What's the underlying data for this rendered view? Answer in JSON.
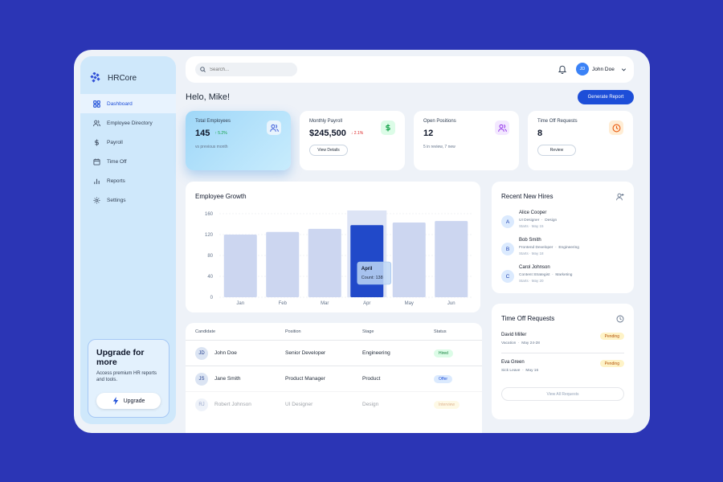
{
  "brand": {
    "name": "HRCore"
  },
  "sidebar": {
    "items": [
      {
        "label": "Dashboard",
        "icon": "grid-icon",
        "active": true
      },
      {
        "label": "Employee Directory",
        "icon": "users-icon"
      },
      {
        "label": "Payroll",
        "icon": "dollar-icon"
      },
      {
        "label": "Time Off",
        "icon": "calendar-icon"
      },
      {
        "label": "Reports",
        "icon": "bar-chart-icon"
      },
      {
        "label": "Settings",
        "icon": "gear-icon"
      }
    ],
    "upgrade": {
      "title": "Upgrade for more",
      "text": "Access premium HR reports and tools.",
      "button": "Upgrade"
    }
  },
  "header": {
    "search_placeholder": "Search...",
    "user": {
      "initials": "JD",
      "name": "John Doe"
    }
  },
  "greeting": "Helo, Mike!",
  "generate_report": "Generate Report",
  "stats": [
    {
      "label": "Total Employees",
      "value": "145",
      "trend": "5.2%",
      "trend_dir": "up",
      "sub": "vs previous month"
    },
    {
      "label": "Monthly Payroll",
      "value": "$245,500",
      "trend": "2.1%",
      "trend_dir": "down",
      "button": "View Details"
    },
    {
      "label": "Open Positions",
      "value": "12",
      "sub": "5 in review, 7 new"
    },
    {
      "label": "Time Off Requests",
      "value": "8",
      "button": "Review"
    }
  ],
  "chart_data": {
    "type": "bar",
    "title": "Employee Growth",
    "categories": [
      "Jan",
      "Feb",
      "Mar",
      "Apr",
      "May",
      "Jun"
    ],
    "values": [
      120,
      125,
      131,
      138,
      143,
      146
    ],
    "ylim": [
      0,
      160
    ],
    "yticks": [
      "0",
      "40",
      "80",
      "120",
      "160"
    ],
    "highlight": "Apr",
    "tooltip": {
      "label": "April",
      "text": "Count: 138"
    },
    "colors": {
      "bar": "#ccd6f0",
      "highlight": "#2149c9"
    }
  },
  "table": {
    "headers": [
      "Candidate",
      "Position",
      "Stage",
      "Status"
    ],
    "rows": [
      {
        "initials": "JD",
        "name": "John Doe",
        "position": "Senior Developer",
        "stage": "Engineering",
        "status": "Hired",
        "status_bg": "#dcfce7",
        "status_fg": "#15803d"
      },
      {
        "initials": "JS",
        "name": "Jane Smith",
        "position": "Product Manager",
        "stage": "Product",
        "status": "Offer",
        "status_bg": "#dbeafe",
        "status_fg": "#1d4ed8"
      },
      {
        "initials": "RJ",
        "name": "Robert Johnson",
        "position": "UI Designer",
        "stage": "Design",
        "status": "Interview",
        "status_bg": "#fef3c7",
        "status_fg": "#b45309"
      }
    ]
  },
  "recent_hires": {
    "title": "Recent New Hires",
    "items": [
      {
        "initial": "A",
        "name": "Alice Cooper",
        "role": "UI Designer",
        "dept": "Design",
        "starts": "Starts · May 15"
      },
      {
        "initial": "B",
        "name": "Bob Smith",
        "role": "Frontend Developer",
        "dept": "Engineering",
        "starts": "Starts · May 18"
      },
      {
        "initial": "C",
        "name": "Carol Johnson",
        "role": "Content Strategist",
        "dept": "Marketing",
        "starts": "Starts · May 20"
      }
    ]
  },
  "time_off": {
    "title": "Time Off Requests",
    "items": [
      {
        "name": "David Miller",
        "type": "Vacation",
        "dates": "May 24-28",
        "status": "Pending"
      },
      {
        "name": "Eva Green",
        "type": "Sick Leave",
        "dates": "May 16",
        "status": "Pending"
      }
    ],
    "view_all": "View All Requests"
  }
}
